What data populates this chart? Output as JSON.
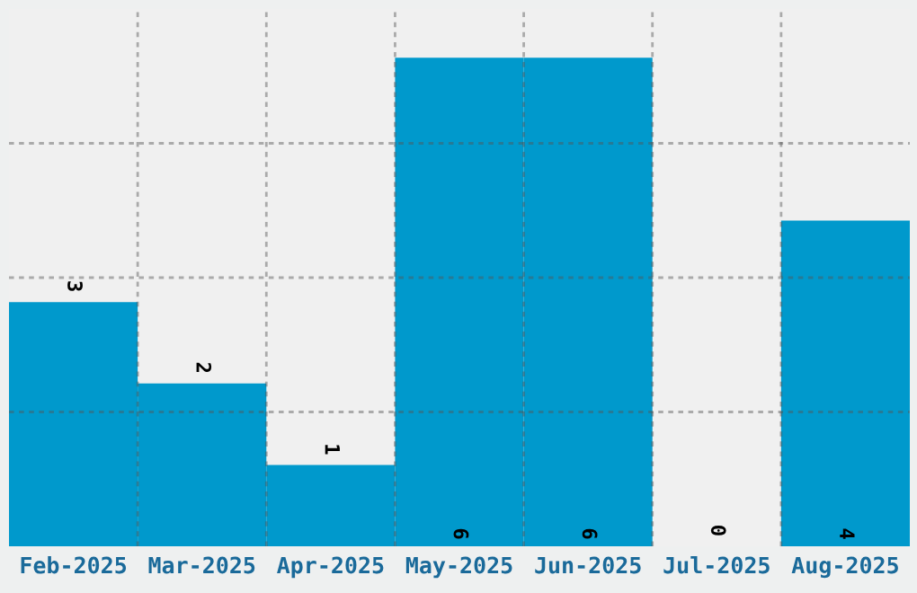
{
  "chart_data": {
    "type": "bar",
    "categories": [
      "Feb-2025",
      "Mar-2025",
      "Apr-2025",
      "May-2025",
      "Jun-2025",
      "Jul-2025",
      "Aug-2025"
    ],
    "values": [
      3,
      2,
      1,
      6,
      6,
      0,
      4
    ],
    "color": "#0099cc",
    "data_labels": true,
    "ylim": [
      0,
      6.6
    ],
    "yticks": [
      {
        "value": 1.65,
        "label": null
      },
      {
        "value": 3.3,
        "label": null
      },
      {
        "value": 4.95,
        "label": null
      }
    ],
    "grid": true,
    "tick_labels": "x"
  }
}
